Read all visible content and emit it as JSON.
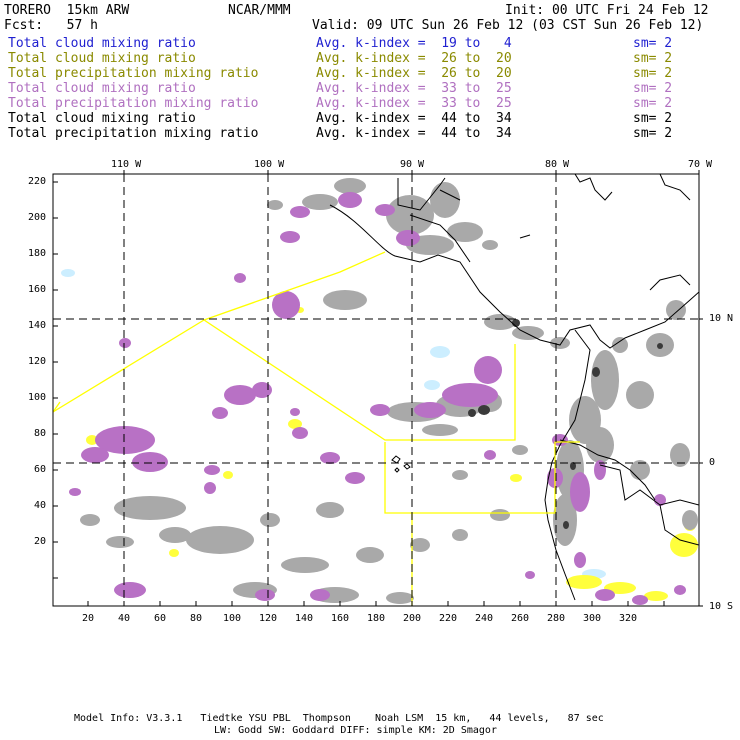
{
  "header": {
    "model": "TORERO  15km ARW",
    "org": "NCAR/MMM",
    "init": "Init: 00 UTC Fri 24 Feb 12",
    "fcst": "Fcst:   57 h",
    "valid": "Valid: 09 UTC Sun 26 Feb 12 (03 CST Sun 26 Feb 12)"
  },
  "legend": [
    {
      "field": "Total cloud mixing ratio",
      "kindex": "Avg. k-index =  19 to   4",
      "sm": "sm= 2",
      "color": "#1f1fd0"
    },
    {
      "field": "Total cloud mixing ratio",
      "kindex": "Avg. k-index =  26 to  20",
      "sm": "sm= 2",
      "color": "#8a8a00"
    },
    {
      "field": "Total precipitation mixing ratio",
      "kindex": "Avg. k-index =  26 to  20",
      "sm": "sm= 2",
      "color": "#8a8a00"
    },
    {
      "field": "Total cloud mixing ratio",
      "kindex": "Avg. k-index =  33 to  25",
      "sm": "sm= 2",
      "color": "#b070c0"
    },
    {
      "field": "Total precipitation mixing ratio",
      "kindex": "Avg. k-index =  33 to  25",
      "sm": "sm= 2",
      "color": "#b070c0"
    },
    {
      "field": "Total cloud mixing ratio",
      "kindex": "Avg. k-index =  44 to  34",
      "sm": "sm= 2",
      "color": "#000000"
    },
    {
      "field": "Total precipitation mixing ratio",
      "kindex": "Avg. k-index =  44 to  34",
      "sm": "sm= 2",
      "color": "#000000"
    }
  ],
  "lon_labels": [
    "110 W",
    "100 W",
    "90 W",
    "80 W",
    "70 W"
  ],
  "lat_labels": [
    "10 N",
    "0",
    "10 S"
  ],
  "y_ticks": [
    "220",
    "200",
    "180",
    "160",
    "140",
    "120",
    "100",
    "80",
    "60",
    "40",
    "20"
  ],
  "x_ticks": [
    "20",
    "40",
    "60",
    "80",
    "100",
    "120",
    "140",
    "160",
    "180",
    "200",
    "220",
    "240",
    "260",
    "280",
    "300",
    "320"
  ],
  "footer": {
    "line1": "Model Info: V3.3.1   Tiedtke YSU PBL  Thompson    Noah LSM  15 km,   44 levels,   87 sec",
    "line2": "LW: Godd SW: Goddard DIFF: simple KM: 2D Smagor"
  },
  "colors": {
    "gray": "#a9a9a9",
    "purple": "#b871c5",
    "yellow": "#ffff3c",
    "cyan": "#cceeff",
    "dark": "#3a3a3a",
    "track": "#ffff00"
  }
}
